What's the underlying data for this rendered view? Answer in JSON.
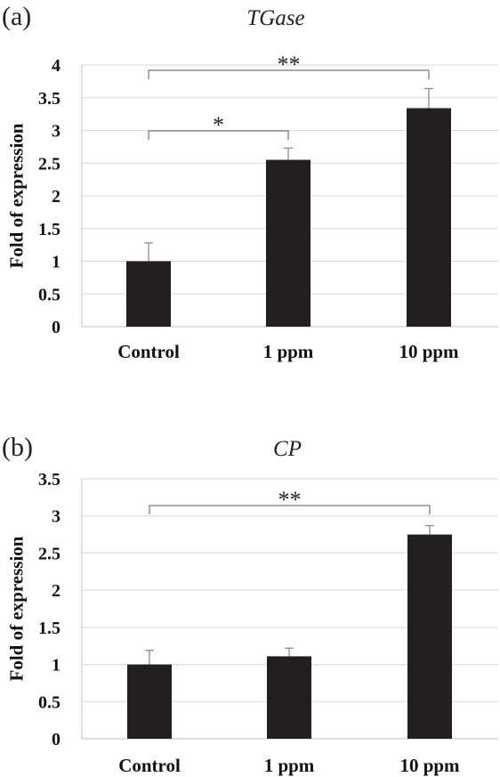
{
  "chart_data": [
    {
      "type": "bar",
      "panel_label": "(a)",
      "title": "TGase",
      "xlabel": "",
      "ylabel": "Fold of expression",
      "categories": [
        "Control",
        "1 ppm",
        "10 ppm"
      ],
      "values": [
        1.0,
        2.55,
        3.34
      ],
      "errors": [
        0.28,
        0.18,
        0.3
      ],
      "ylim": [
        0,
        4
      ],
      "yticks": [
        "0",
        "0.5",
        "1",
        "1.5",
        "2",
        "2.5",
        "3",
        "3.5",
        "4"
      ],
      "grid": true,
      "bar_color": "#231f20",
      "significance": [
        {
          "from": "Control",
          "to": "1 ppm",
          "label": "*"
        },
        {
          "from": "Control",
          "to": "10 ppm",
          "label": "**"
        }
      ]
    },
    {
      "type": "bar",
      "panel_label": "(b)",
      "title": "CP",
      "xlabel": "",
      "ylabel": "Fold of expression",
      "categories": [
        "Control",
        "1 ppm",
        "10 ppm"
      ],
      "values": [
        1.0,
        1.11,
        2.75
      ],
      "errors": [
        0.19,
        0.11,
        0.12
      ],
      "ylim": [
        0,
        3.5
      ],
      "yticks": [
        "0",
        "0.5",
        "1",
        "1.5",
        "2",
        "2.5",
        "3",
        "3.5"
      ],
      "grid": true,
      "bar_color": "#231f20",
      "significance": [
        {
          "from": "Control",
          "to": "10 ppm",
          "label": "**"
        }
      ]
    }
  ]
}
